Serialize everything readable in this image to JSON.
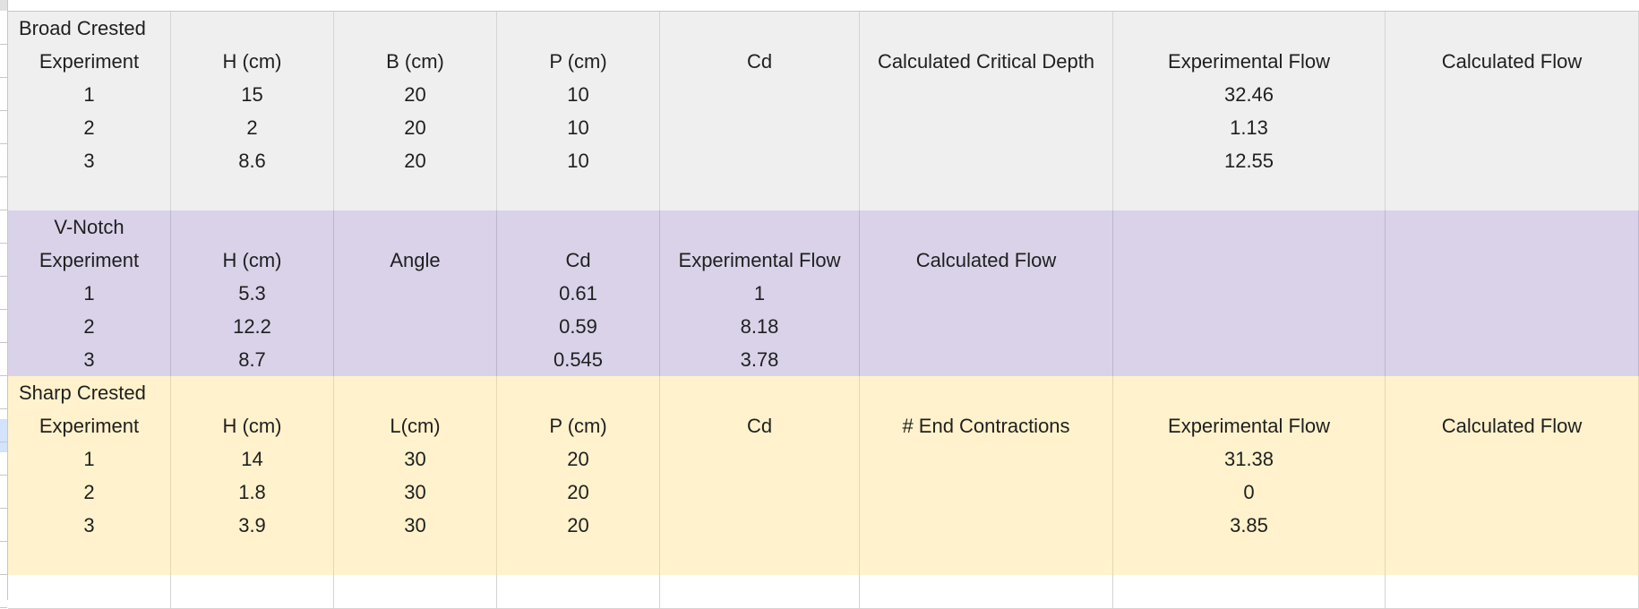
{
  "sheet": {
    "broad_crested": {
      "title": "Broad Crested",
      "headers": [
        "Experiment",
        "H (cm)",
        "B (cm)",
        "P (cm)",
        "Cd",
        "Calculated Critical Depth",
        "Experimental Flow",
        "Calculated Flow"
      ],
      "rows": [
        [
          "1",
          "15",
          "20",
          "10",
          "",
          "",
          "32.46",
          ""
        ],
        [
          "2",
          "2",
          "20",
          "10",
          "",
          "",
          "1.13",
          ""
        ],
        [
          "3",
          "8.6",
          "20",
          "10",
          "",
          "",
          "12.55",
          ""
        ]
      ]
    },
    "v_notch": {
      "title": "V-Notch",
      "headers": [
        "Experiment",
        "H (cm)",
        "Angle",
        "Cd",
        "Experimental Flow",
        "Calculated Flow",
        "",
        ""
      ],
      "rows": [
        [
          "1",
          "5.3",
          "",
          "0.61",
          "1",
          "",
          "",
          ""
        ],
        [
          "2",
          "12.2",
          "",
          "0.59",
          "8.18",
          "",
          "",
          ""
        ],
        [
          "3",
          "8.7",
          "",
          "0.545",
          "3.78",
          "",
          "",
          ""
        ]
      ]
    },
    "sharp_crested": {
      "title": "Sharp Crested",
      "headers": [
        "Experiment",
        "H (cm)",
        "L(cm)",
        "P (cm)",
        "Cd",
        "# End Contractions",
        "Experimental Flow",
        "Calculated Flow"
      ],
      "rows": [
        [
          "1",
          "14",
          "30",
          "20",
          "",
          "",
          "31.38",
          ""
        ],
        [
          "2",
          "1.8",
          "30",
          "20",
          "",
          "",
          "0",
          ""
        ],
        [
          "3",
          "3.9",
          "30",
          "20",
          "",
          "",
          "3.85",
          ""
        ]
      ]
    }
  },
  "colors": {
    "broad_crested_fill": "#efefef",
    "v_notch_fill": "#d9d2e9",
    "sharp_crested_fill": "#fff2cc",
    "gridline": "#d4d4d4"
  }
}
